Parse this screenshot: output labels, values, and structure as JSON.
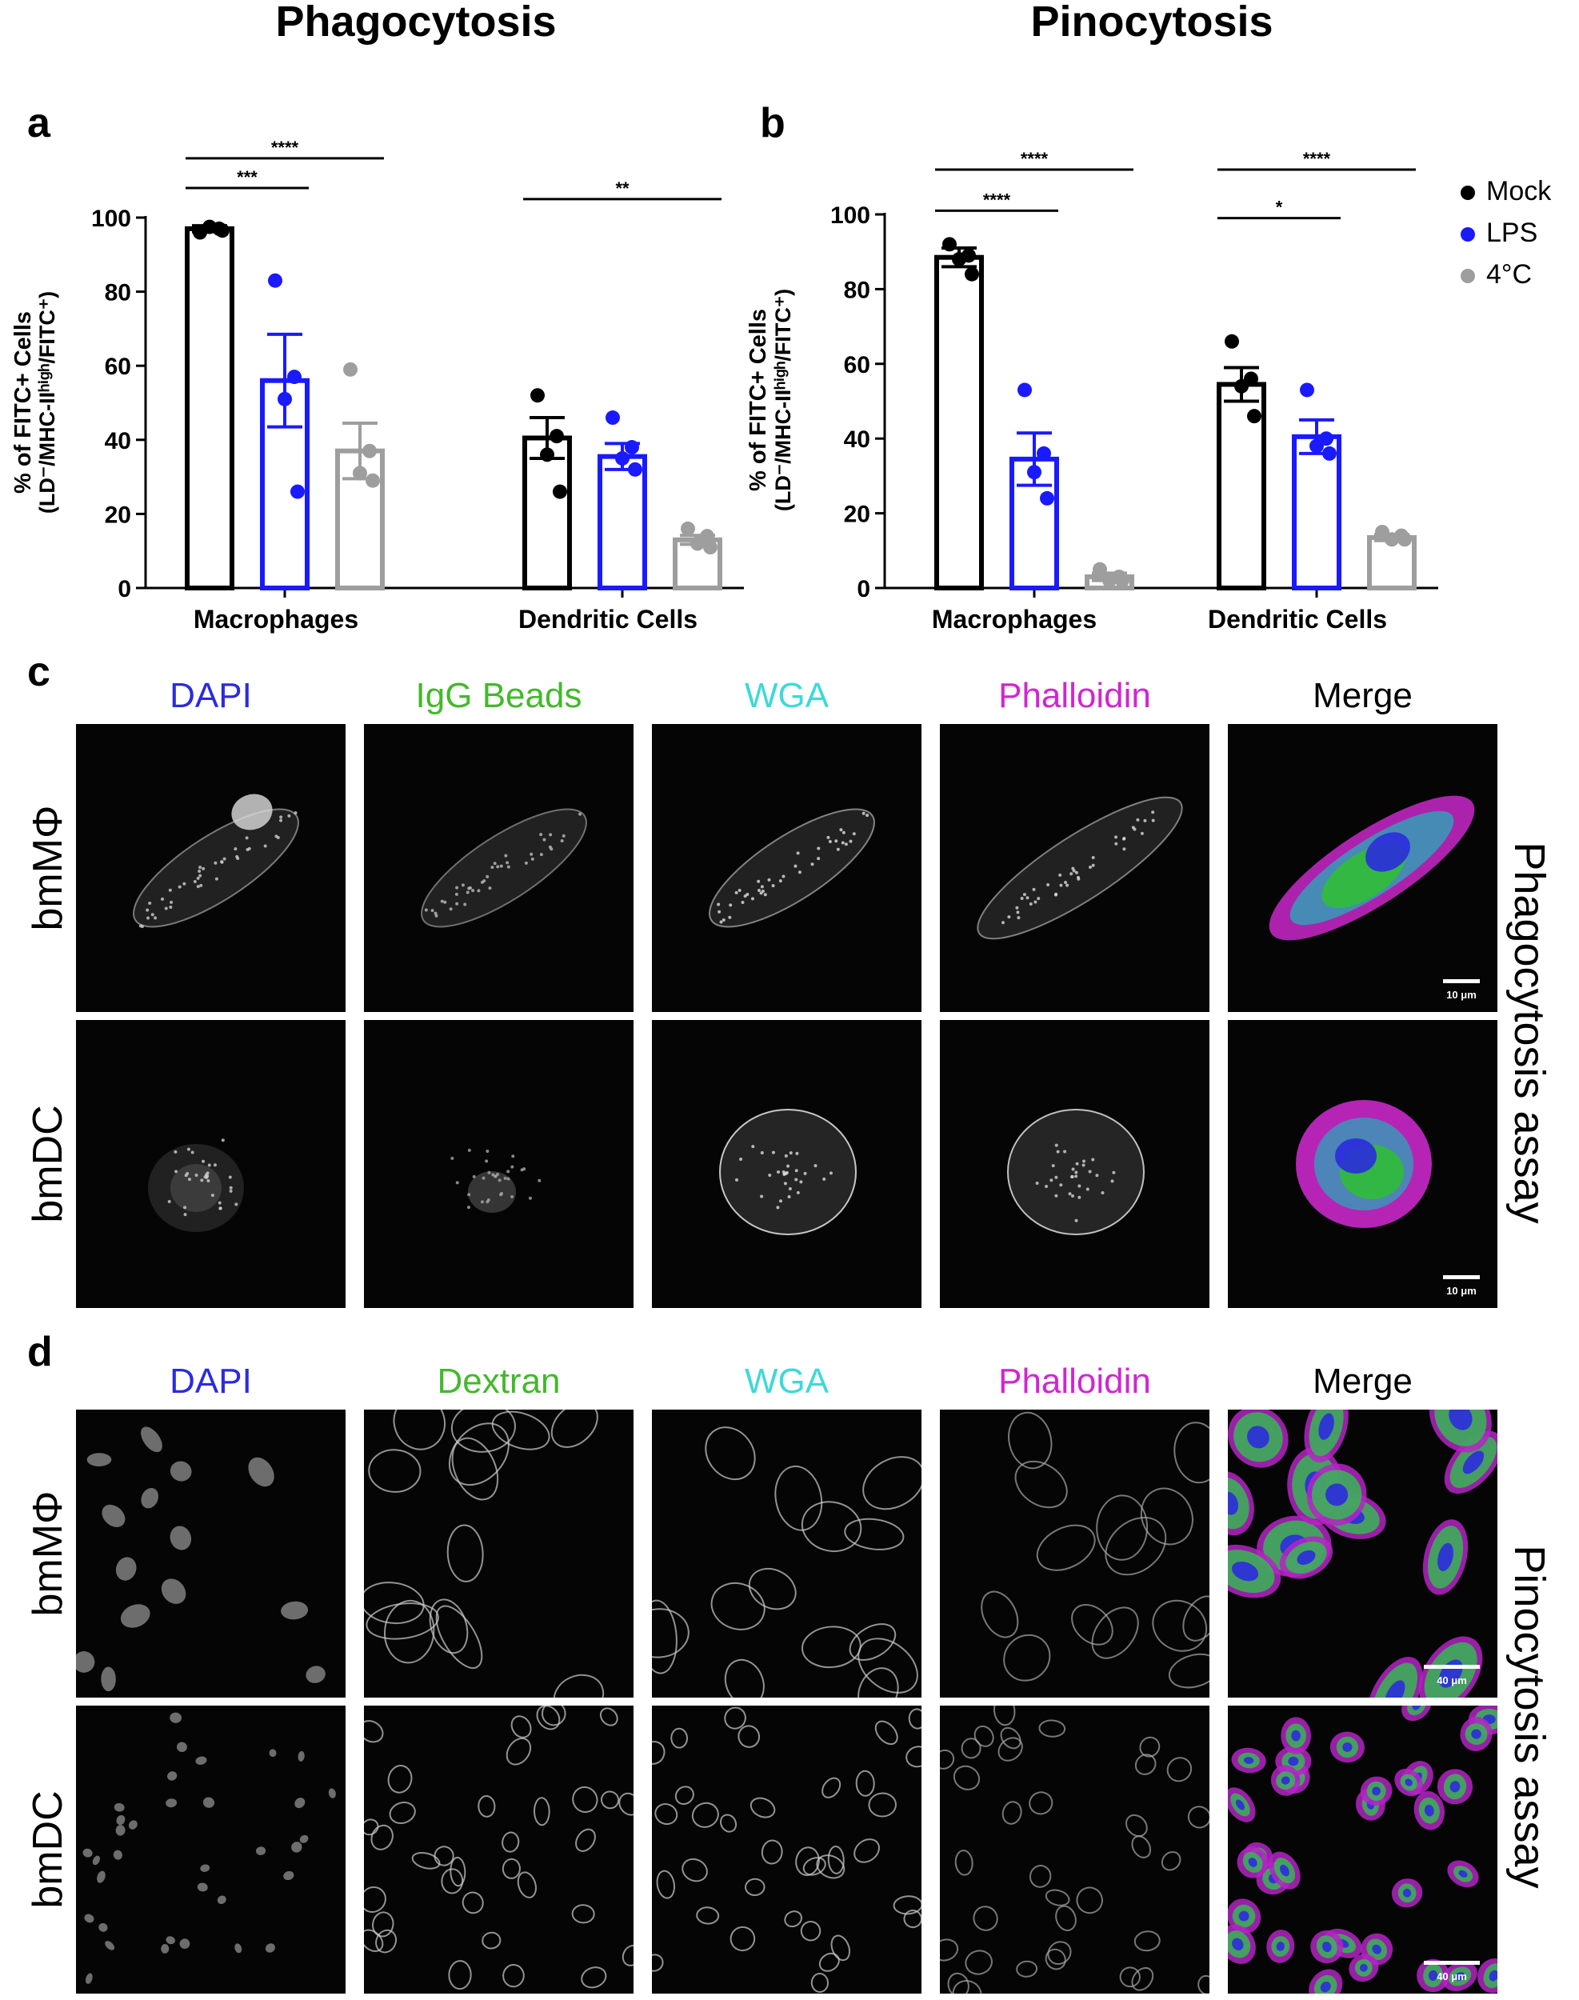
{
  "sections": {
    "left_title": "Phagocytosis",
    "right_title": "Pinocytosis"
  },
  "panel_letters": {
    "a": "a",
    "b": "b",
    "c": "c",
    "d": "d"
  },
  "legend": [
    {
      "label": "Mock",
      "color": "#000000"
    },
    {
      "label": "LPS",
      "color": "#1a1aff"
    },
    {
      "label": "4°C",
      "color": "#9e9e9e"
    }
  ],
  "chart_data": [
    {
      "panel": "a",
      "type": "bar",
      "ylabel_line1": "% of FITC+ Cells",
      "ylabel_line2": "(LD⁻/MHC-IIʰⁱᵍʰ/FITC⁺)",
      "categories": [
        "Macrophages",
        "Dendritic Cells"
      ],
      "ylim": [
        0,
        100
      ],
      "yticks": [
        0,
        20,
        40,
        60,
        80,
        100
      ],
      "series": [
        {
          "name": "Mock",
          "color": "#000000",
          "means": [
            97,
            40.5
          ],
          "sem": [
            0.8,
            5.5
          ],
          "points": [
            [
              96,
              97,
              97.5,
              96.5
            ],
            [
              52,
              41,
              36,
              26
            ]
          ]
        },
        {
          "name": "LPS",
          "color": "#1a1aff",
          "means": [
            56,
            35.5
          ],
          "sem": [
            12.5,
            3.5
          ],
          "points": [
            [
              83,
              57,
              51,
              26
            ],
            [
              46,
              38,
              35,
              32
            ]
          ]
        },
        {
          "name": "4°C",
          "color": "#9e9e9e",
          "means": [
            37,
            13
          ],
          "sem": [
            7.5,
            1.2
          ],
          "points": [
            [
              59,
              37,
              31,
              29
            ],
            [
              16,
              14,
              12,
              11
            ]
          ]
        }
      ],
      "significance": [
        {
          "label": "***",
          "group": 0,
          "from": 0,
          "to": 1,
          "level": 108
        },
        {
          "label": "****",
          "group": 0,
          "from": 0,
          "to": 2,
          "level": 116
        },
        {
          "label": "**",
          "group": 1,
          "from": 0,
          "to": 2,
          "level": 105
        }
      ]
    },
    {
      "panel": "b",
      "type": "bar",
      "ylabel_line1": "% of FITC+ Cells",
      "ylabel_line2": "(LD⁻/MHC-IIʰⁱᵍʰ/FITC⁺)",
      "categories": [
        "Macrophages",
        "Dendritic Cells"
      ],
      "ylim": [
        0,
        100
      ],
      "yticks": [
        0,
        20,
        40,
        60,
        80,
        100
      ],
      "series": [
        {
          "name": "Mock",
          "color": "#000000",
          "means": [
            88.5,
            54.5
          ],
          "sem": [
            2.5,
            4.5
          ],
          "points": [
            [
              92,
              89,
              88,
              84
            ],
            [
              66,
              56,
              54,
              46
            ]
          ]
        },
        {
          "name": "LPS",
          "color": "#1a1aff",
          "means": [
            34.5,
            40.5
          ],
          "sem": [
            7,
            4.5
          ],
          "points": [
            [
              53,
              36,
              31,
              24
            ],
            [
              53,
              40,
              38,
              36
            ]
          ]
        },
        {
          "name": "4°C",
          "color": "#9e9e9e",
          "means": [
            3,
            13.5
          ],
          "sem": [
            1,
            0.8
          ],
          "points": [
            [
              5,
              3,
              2,
              2
            ],
            [
              15,
              14,
              13,
              13
            ]
          ]
        }
      ],
      "significance": [
        {
          "label": "****",
          "group": 0,
          "from": 0,
          "to": 1,
          "level": 101
        },
        {
          "label": "****",
          "group": 0,
          "from": 0,
          "to": 2,
          "level": 112
        },
        {
          "label": "*",
          "group": 1,
          "from": 0,
          "to": 1,
          "level": 99
        },
        {
          "label": "****",
          "group": 1,
          "from": 0,
          "to": 2,
          "level": 112
        }
      ]
    }
  ],
  "panel_c": {
    "columns": [
      {
        "label": "DAPI",
        "color": "#2b2bdd"
      },
      {
        "label": "IgG Beads",
        "color": "#44b82c"
      },
      {
        "label": "WGA",
        "color": "#3fd8d8"
      },
      {
        "label": "Phalloidin",
        "color": "#d126d1"
      },
      {
        "label": "Merge",
        "color": "#000000"
      }
    ],
    "rows": [
      "bmMΦ",
      "bmDC"
    ],
    "assay": "Phagocytosis assay",
    "scalebar": "10 μm"
  },
  "panel_d": {
    "columns": [
      {
        "label": "DAPI",
        "color": "#2b2bdd"
      },
      {
        "label": "Dextran",
        "color": "#44b82c"
      },
      {
        "label": "WGA",
        "color": "#3fd8d8"
      },
      {
        "label": "Phalloidin",
        "color": "#d126d1"
      },
      {
        "label": "Merge",
        "color": "#000000"
      }
    ],
    "rows": [
      "bmMΦ",
      "bmDC"
    ],
    "assay": "Pinocytosis assay",
    "scalebar": "40 μm"
  }
}
